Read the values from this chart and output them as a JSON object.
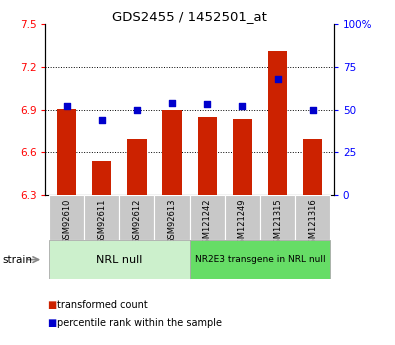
{
  "title": "GDS2455 / 1452501_at",
  "categories": [
    "GSM92610",
    "GSM92611",
    "GSM92612",
    "GSM92613",
    "GSM121242",
    "GSM121249",
    "GSM121315",
    "GSM121316"
  ],
  "bar_values": [
    6.905,
    6.54,
    6.69,
    6.9,
    6.845,
    6.83,
    7.31,
    6.69
  ],
  "blue_values": [
    52,
    44,
    50,
    54,
    53,
    52,
    68,
    50
  ],
  "ylim_left": [
    6.3,
    7.5
  ],
  "ylim_right": [
    0,
    100
  ],
  "yticks_left": [
    6.3,
    6.6,
    6.9,
    7.2,
    7.5
  ],
  "ytick_labels_left": [
    "6.3",
    "6.6",
    "6.9",
    "7.2",
    "7.5"
  ],
  "yticks_right": [
    0,
    25,
    50,
    75,
    100
  ],
  "ytick_labels_right": [
    "0",
    "25",
    "50",
    "75",
    "100%"
  ],
  "hlines": [
    6.6,
    6.9,
    7.2
  ],
  "bar_color": "#cc2200",
  "blue_color": "#0000cc",
  "group1_label": "NRL null",
  "group2_label": "NR2E3 transgene in NRL null",
  "group1_bg": "#ccf0cc",
  "group2_bg": "#66dd66",
  "tick_bg": "#c8c8c8",
  "legend_items": [
    "transformed count",
    "percentile rank within the sample"
  ],
  "legend_colors": [
    "#cc2200",
    "#0000cc"
  ],
  "strain_label": "strain",
  "base_value": 6.3,
  "bar_width": 0.55
}
